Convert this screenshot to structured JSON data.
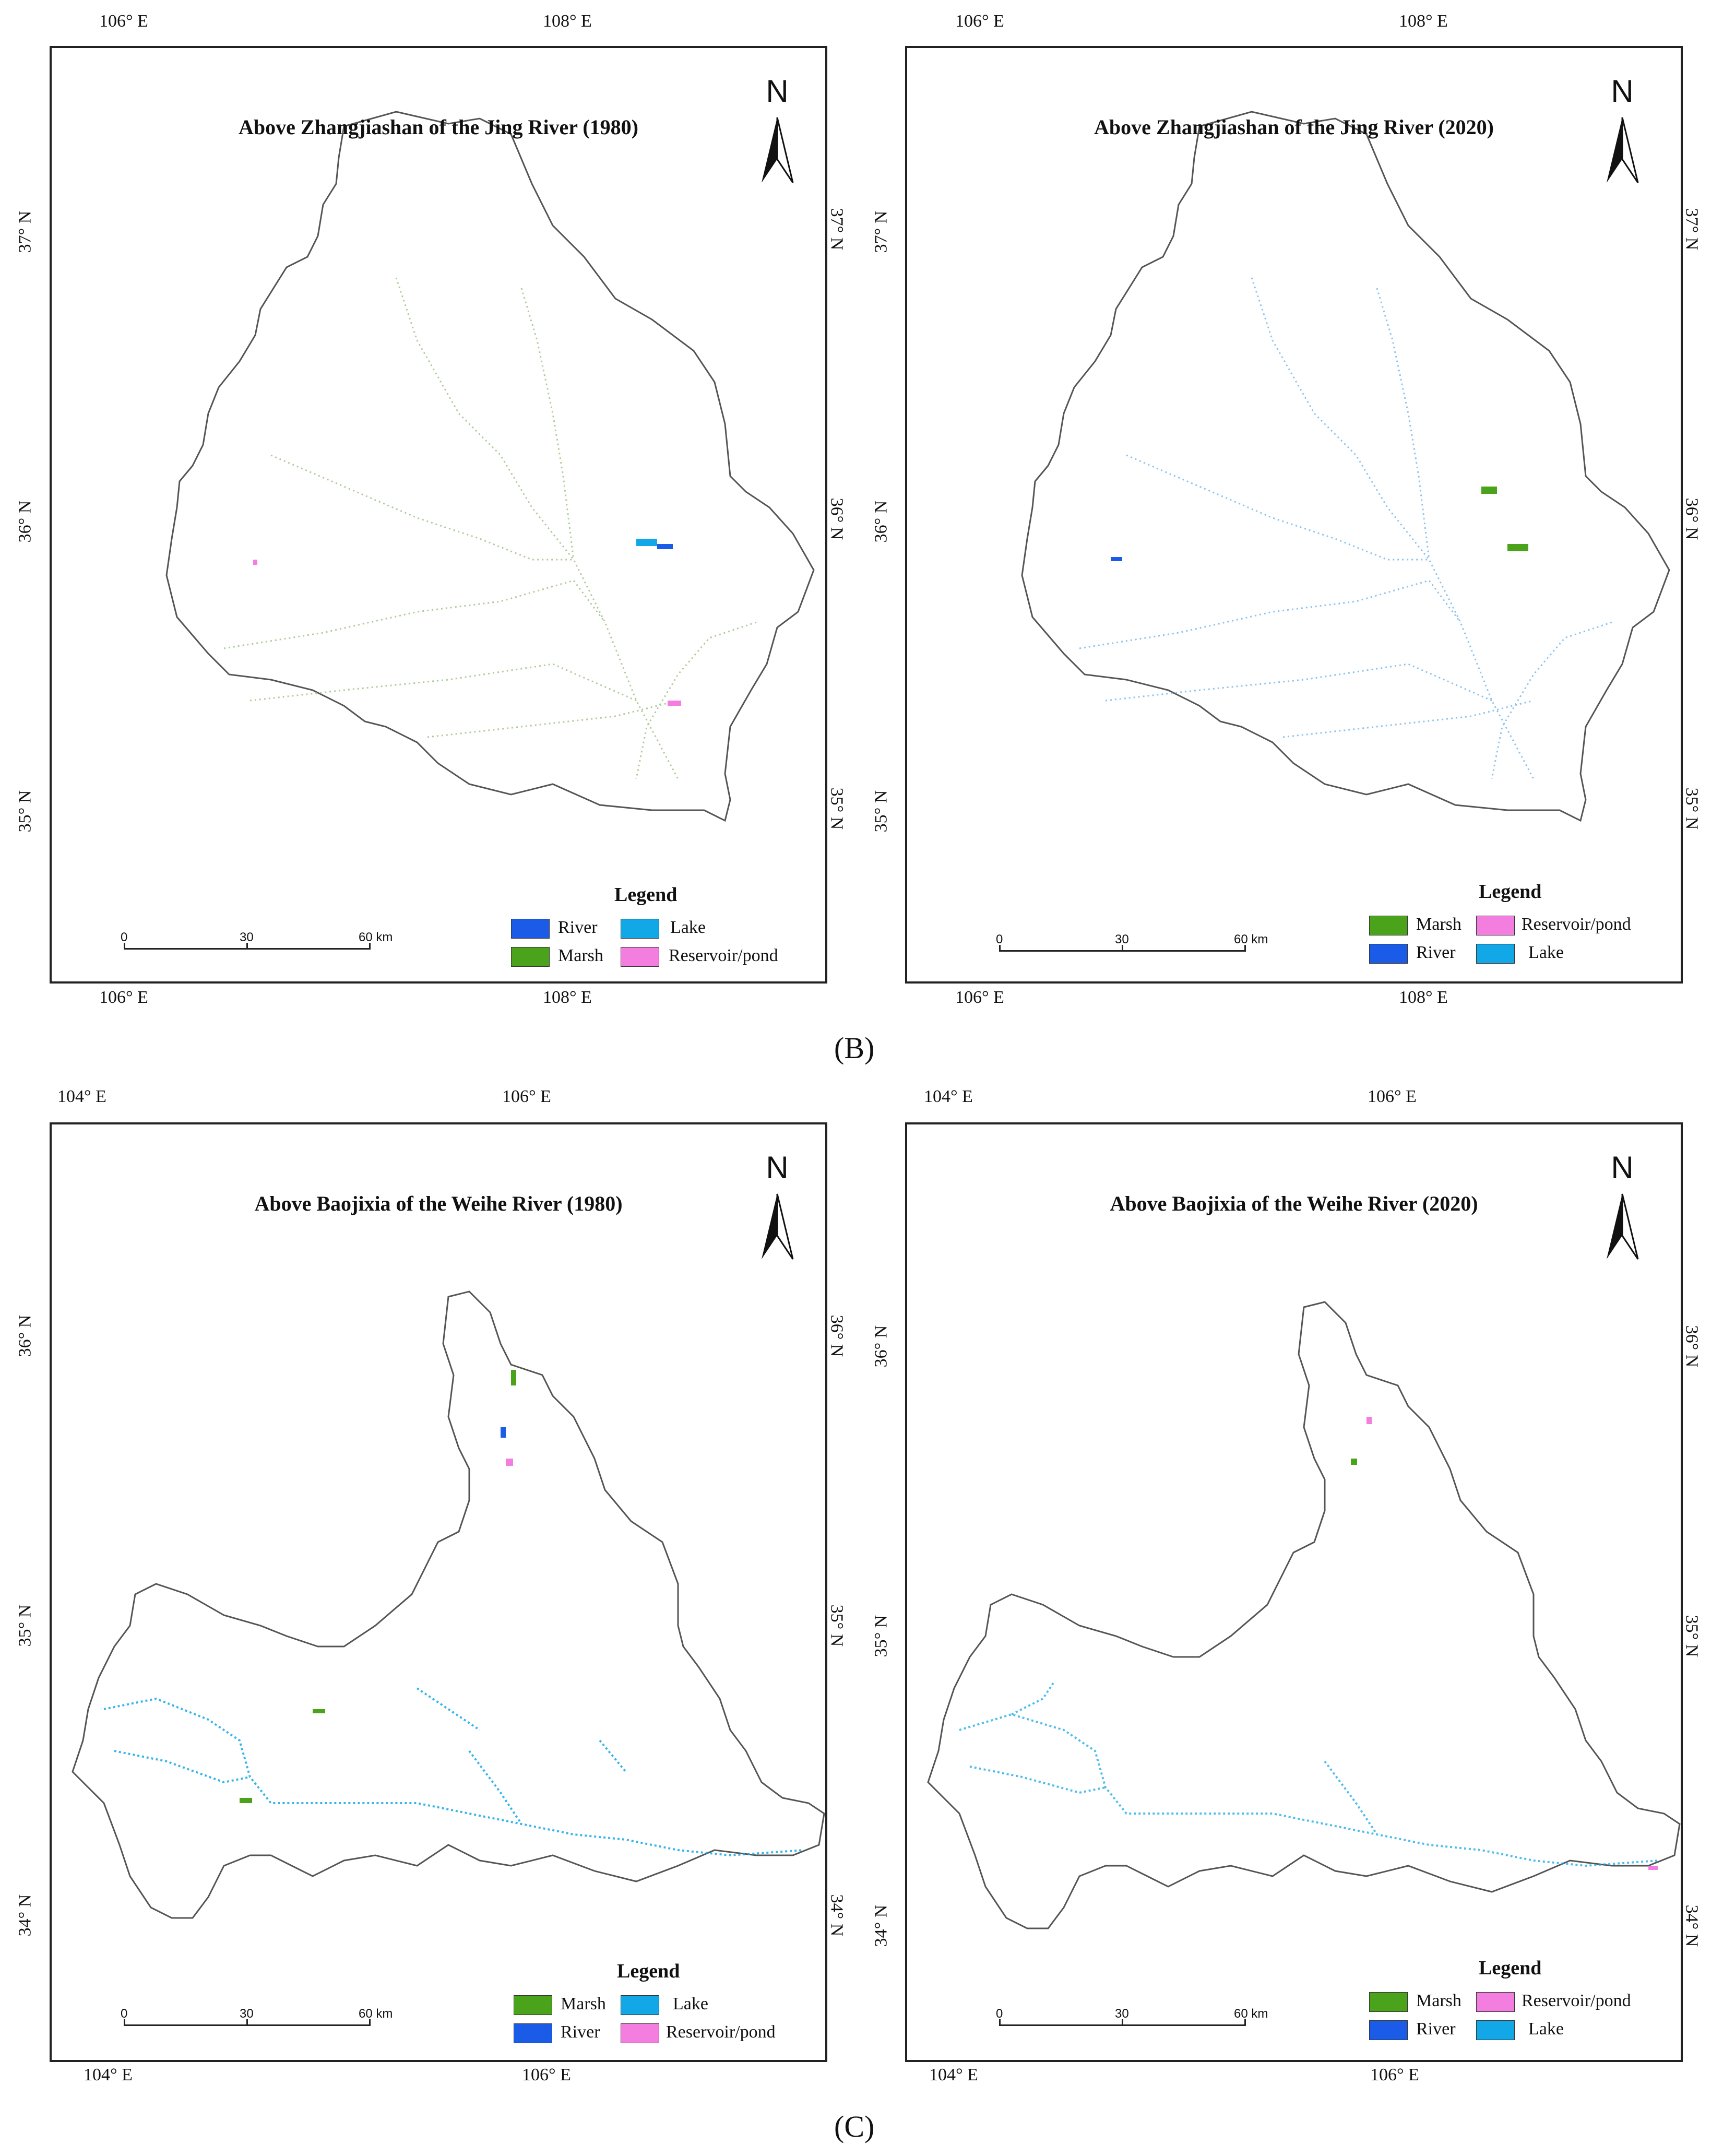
{
  "colors": {
    "river": "#1a5ce8",
    "lake": "#12a8e8",
    "marsh": "#4aa31a",
    "reservoir": "#f47ee0",
    "outline": "#555555",
    "frame": "#222222"
  },
  "panel_labels": {
    "b": "(B)",
    "c": "(C)"
  },
  "maps": [
    {
      "title": "Above Zhangjiashan of the Jing River (1980)",
      "top_lon": [
        "106° E",
        "108° E"
      ],
      "bottom_lon": [
        "106° E",
        "108° E"
      ],
      "left_lat": [
        "37° N",
        "36° N",
        "35° N"
      ],
      "right_lat": [
        "37° N",
        "36° N",
        "35° N"
      ],
      "north": "N",
      "scale": {
        "labels": [
          "0",
          "30",
          "60 km"
        ]
      },
      "legend": {
        "title": "Legend",
        "items": [
          {
            "label": "River",
            "color": "#1a5ce8"
          },
          {
            "label": "Lake",
            "color": "#12a8e8"
          },
          {
            "label": "Marsh",
            "color": "#4aa31a"
          },
          {
            "label": "Reservoir/pond",
            "color": "#f47ee0"
          }
        ]
      }
    },
    {
      "title": "Above Zhangjiashan of the Jing River (2020)",
      "top_lon": [
        "106° E",
        "108° E"
      ],
      "bottom_lon": [
        "106° E",
        "108° E"
      ],
      "left_lat": [
        "37° N",
        "36° N",
        "35° N"
      ],
      "right_lat": [
        "37° N",
        "36° N",
        "35° N"
      ],
      "north": "N",
      "scale": {
        "labels": [
          "0",
          "30",
          "60 km"
        ]
      },
      "legend": {
        "title": "Legend",
        "items": [
          {
            "label": "Marsh",
            "color": "#4aa31a"
          },
          {
            "label": "Reservoir/pond",
            "color": "#f47ee0"
          },
          {
            "label": "River",
            "color": "#1a5ce8"
          },
          {
            "label": "Lake",
            "color": "#12a8e8"
          }
        ]
      }
    },
    {
      "title": "Above Baojixia of the Weihe River (1980)",
      "top_lon": [
        "104° E",
        "106° E"
      ],
      "bottom_lon": [
        "104° E",
        "106° E"
      ],
      "left_lat": [
        "36° N",
        "35° N",
        "34° N"
      ],
      "right_lat": [
        "36° N",
        "35° N",
        "34° N"
      ],
      "north": "N",
      "scale": {
        "labels": [
          "0",
          "30",
          "60 km"
        ]
      },
      "legend": {
        "title": "Legend",
        "items": [
          {
            "label": "Marsh",
            "color": "#4aa31a"
          },
          {
            "label": "Lake",
            "color": "#12a8e8"
          },
          {
            "label": "River",
            "color": "#1a5ce8"
          },
          {
            "label": "Reservoir/pond",
            "color": "#f47ee0"
          }
        ]
      }
    },
    {
      "title": "Above Baojixia of the Weihe River (2020)",
      "top_lon": [
        "104° E",
        "106° E"
      ],
      "bottom_lon": [
        "104° E",
        "106° E"
      ],
      "left_lat": [
        "36° N",
        "35° N",
        "34° N"
      ],
      "right_lat": [
        "36° N",
        "35° N",
        "34° N"
      ],
      "north": "N",
      "scale": {
        "labels": [
          "0",
          "30",
          "60 km"
        ]
      },
      "legend": {
        "title": "Legend",
        "items": [
          {
            "label": "Marsh",
            "color": "#4aa31a"
          },
          {
            "label": "Reservoir/pond",
            "color": "#f47ee0"
          },
          {
            "label": "River",
            "color": "#1a5ce8"
          },
          {
            "label": "Lake",
            "color": "#12a8e8"
          }
        ]
      }
    }
  ]
}
